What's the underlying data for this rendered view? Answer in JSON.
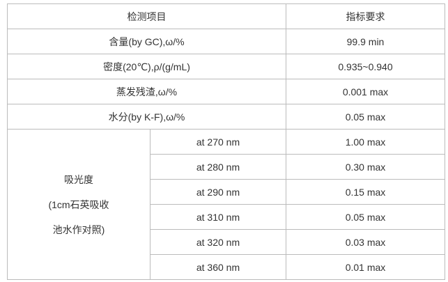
{
  "header": [
    "检测项目",
    "指标要求"
  ],
  "rows": [
    {
      "item": "含量(by GC),ω/%",
      "requirement": "99.9 min"
    },
    {
      "item": "密度(20℃),ρ/(g/mL)",
      "requirement": "0.935~0.940"
    },
    {
      "item": "蒸发残渣,ω/%",
      "requirement": "0.001 max"
    },
    {
      "item": "水分(by K-F),ω/%",
      "requirement": "0.05 max"
    }
  ],
  "absorbance": {
    "label": [
      "吸光度",
      "(1cm石英吸收",
      "池水作对照)"
    ],
    "rows": [
      {
        "wavelength": "at 270 nm",
        "requirement": "1.00 max"
      },
      {
        "wavelength": "at 280 nm",
        "requirement": "0.30 max"
      },
      {
        "wavelength": "at 290 nm",
        "requirement": "0.15 max"
      },
      {
        "wavelength": "at 310 nm",
        "requirement": "0.05 max"
      },
      {
        "wavelength": "at 320 nm",
        "requirement": "0.03 max"
      },
      {
        "wavelength": "at 360 nm",
        "requirement": "0.01 max"
      }
    ]
  }
}
